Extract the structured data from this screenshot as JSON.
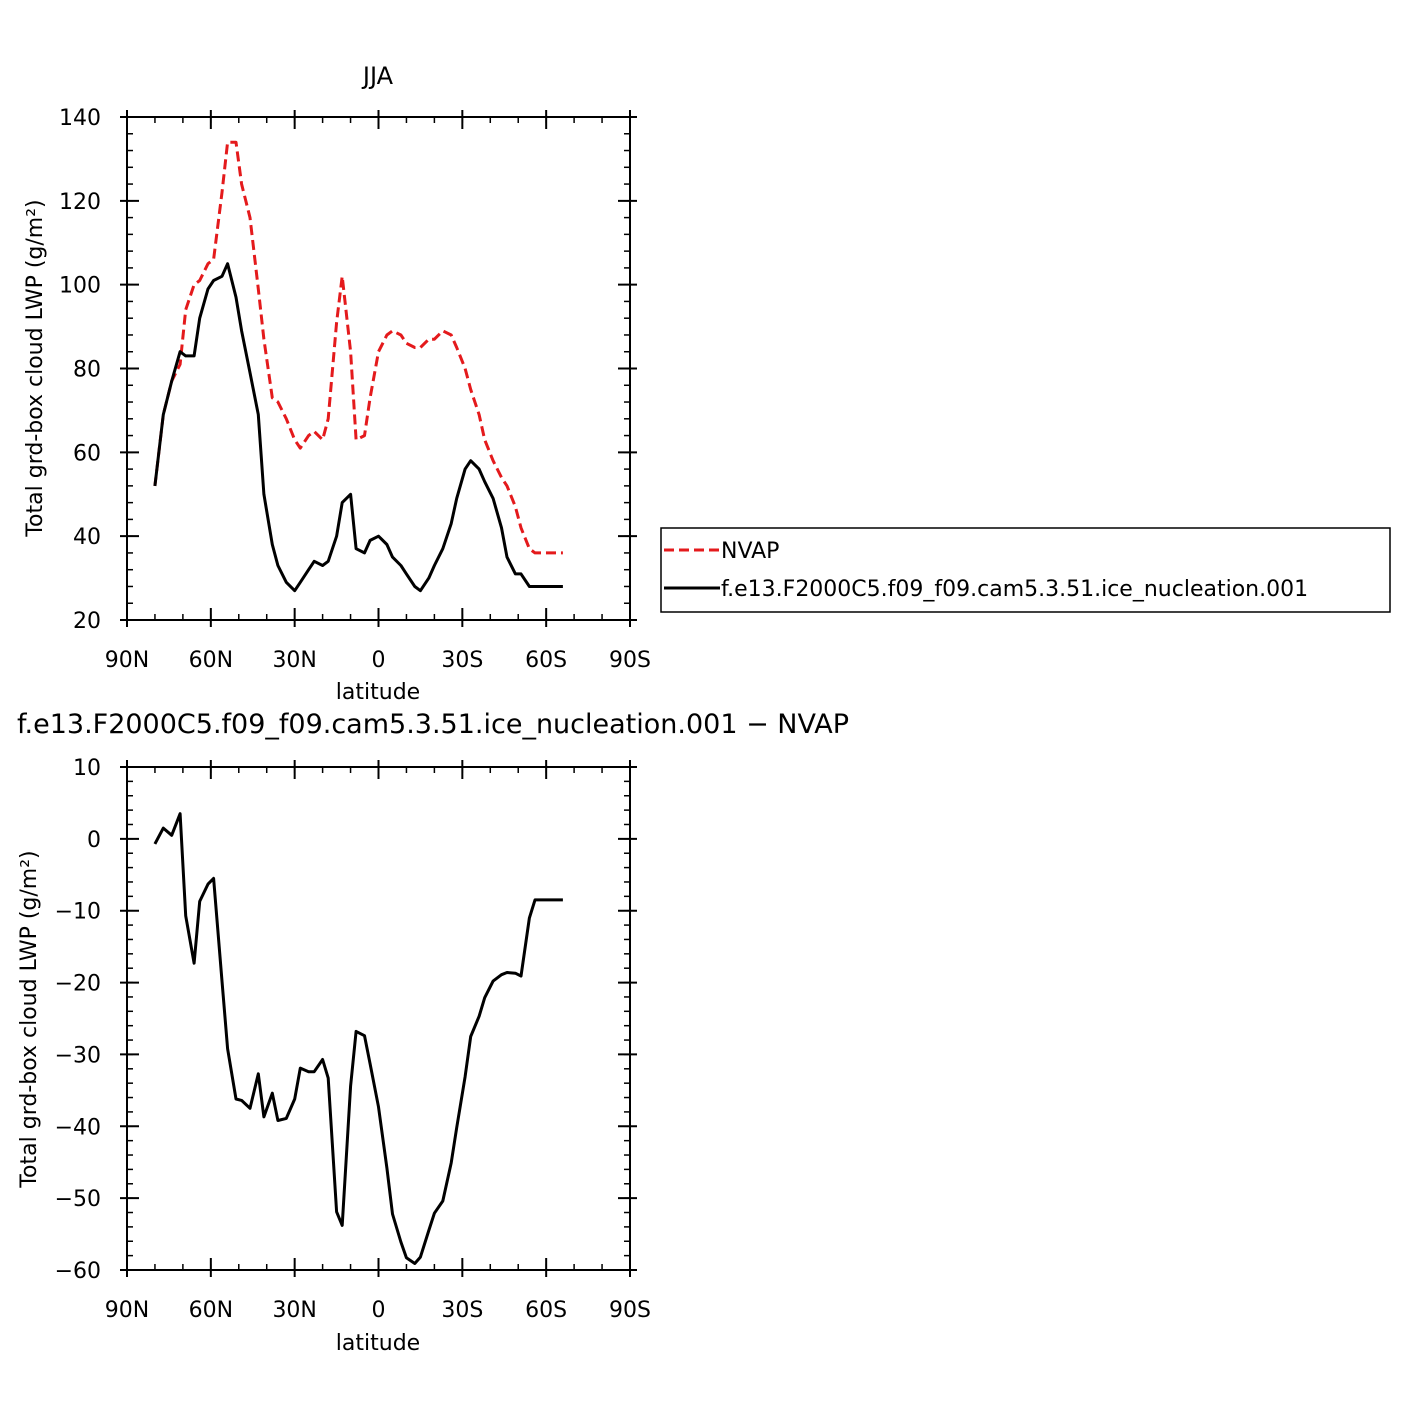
{
  "chart_data": [
    {
      "type": "line",
      "title": "JJA",
      "xlabel": "latitude",
      "ylabel": "Total grd-box cloud LWP (g/m²)",
      "xlim": [
        90,
        -90
      ],
      "ylim": [
        20,
        140
      ],
      "xticks": [
        90,
        60,
        30,
        0,
        -30,
        -60,
        -90
      ],
      "xtick_labels": [
        "90N",
        "60N",
        "30N",
        "0",
        "30S",
        "60S",
        "90S"
      ],
      "yticks": [
        20,
        40,
        60,
        80,
        100,
        120,
        140
      ],
      "ytick_labels": [
        "20",
        "40",
        "60",
        "80",
        "100",
        "120",
        "140"
      ],
      "legend_position": "right",
      "series": [
        {
          "name": "NVAP",
          "color": "#e41a1c",
          "dash": "dashed",
          "x": [
            80,
            77,
            74,
            71,
            69,
            66,
            64,
            61,
            59,
            56,
            54,
            51,
            49,
            46,
            43,
            41,
            38,
            36,
            33,
            30,
            28,
            25,
            23,
            20,
            18,
            15,
            13,
            10,
            8,
            5,
            3,
            0,
            -3,
            -5,
            -8,
            -10,
            -13,
            -15,
            -18,
            -20,
            -23,
            -26,
            -28,
            -31,
            -33,
            -36,
            -38,
            -41,
            -44,
            -46,
            -49,
            -51,
            -54,
            -56,
            -59,
            -61,
            -64,
            -66
          ],
          "y": [
            52,
            69,
            77,
            81,
            94,
            100,
            101,
            105,
            106,
            122,
            134,
            134,
            124,
            116,
            99,
            87,
            73,
            72,
            68,
            63,
            61,
            64,
            65,
            63,
            68,
            91,
            102,
            84,
            63,
            64,
            73,
            84,
            88,
            89,
            88,
            86,
            85,
            85,
            87,
            87,
            89,
            88,
            85,
            80,
            75,
            69,
            63,
            58,
            54,
            52,
            47,
            42,
            37,
            36,
            36,
            36,
            36,
            36
          ]
        },
        {
          "name": "f.e13.F2000C5.f09_f09.cam5.3.51.ice_nucleation.001",
          "color": "#000000",
          "dash": "solid",
          "x": [
            80,
            77,
            74,
            71,
            69,
            66,
            64,
            61,
            59,
            56,
            54,
            51,
            49,
            46,
            43,
            41,
            38,
            36,
            33,
            30,
            28,
            25,
            23,
            20,
            18,
            15,
            13,
            10,
            8,
            5,
            3,
            0,
            -3,
            -5,
            -8,
            -10,
            -13,
            -15,
            -18,
            -20,
            -23,
            -26,
            -28,
            -31,
            -33,
            -36,
            -38,
            -41,
            -44,
            -46,
            -49,
            -51,
            -54,
            -56,
            -59,
            -61,
            -64,
            -66
          ],
          "y": [
            52,
            69,
            77,
            84,
            83,
            83,
            92,
            99,
            101,
            102,
            105,
            97,
            89,
            79,
            69,
            50,
            38,
            33,
            29,
            27,
            29,
            32,
            34,
            33,
            34,
            40,
            48,
            50,
            37,
            36,
            39,
            40,
            38,
            35,
            33,
            31,
            28,
            27,
            30,
            33,
            37,
            43,
            49,
            56,
            58,
            56,
            53,
            49,
            42,
            35,
            31,
            31,
            28,
            28,
            28,
            28,
            28,
            28
          ]
        }
      ]
    },
    {
      "type": "line",
      "title": "f.e13.F2000C5.f09_f09.cam5.3.51.ice_nucleation.001 − NVAP",
      "xlabel": "latitude",
      "ylabel": "Total grd-box cloud LWP (g/m²)",
      "xlim": [
        90,
        -90
      ],
      "ylim": [
        -60,
        10
      ],
      "xticks": [
        90,
        60,
        30,
        0,
        -30,
        -60,
        -90
      ],
      "xtick_labels": [
        "90N",
        "60N",
        "30N",
        "0",
        "30S",
        "60S",
        "90S"
      ],
      "yticks": [
        -60,
        -50,
        -40,
        -30,
        -20,
        -10,
        0,
        10
      ],
      "ytick_labels": [
        "−60",
        "−50",
        "−40",
        "−30",
        "−20",
        "−10",
        "0",
        "10"
      ],
      "series": [
        {
          "color": "#000000",
          "dash": "solid",
          "x": [
            80,
            77,
            74,
            71,
            69,
            66,
            64,
            61,
            59,
            56,
            54,
            51,
            49,
            46,
            43,
            41,
            38,
            36,
            33,
            30,
            28,
            25,
            23,
            20,
            18,
            15,
            13,
            10,
            8,
            5,
            3,
            0,
            -3,
            -5,
            -8,
            -10,
            -13,
            -15,
            -18,
            -20,
            -23,
            -26,
            -28,
            -31,
            -33,
            -36,
            -38,
            -41,
            -44,
            -46,
            -49,
            -51,
            -54,
            -56,
            -59,
            -61,
            -64,
            -66
          ],
          "y": [
            -0.7,
            1.5,
            0.5,
            3.5,
            -10.7,
            -17.3,
            -8.7,
            -6.3,
            -5.5,
            -19.8,
            -29.2,
            -36.2,
            -36.4,
            -37.5,
            -32.7,
            -38.7,
            -35.4,
            -39.2,
            -38.9,
            -36.2,
            -31.9,
            -32.4,
            -32.4,
            -30.7,
            -33.3,
            -51.9,
            -53.8,
            -34.4,
            -26.8,
            -27.4,
            -31.3,
            -37.3,
            -45.8,
            -52.2,
            -56.1,
            -58.3,
            -59.1,
            -58.2,
            -54.5,
            -52.1,
            -50.4,
            -45.1,
            -40.2,
            -33.1,
            -27.5,
            -24.7,
            -22.1,
            -19.8,
            -18.9,
            -18.6,
            -18.7,
            -19.1,
            -11.0,
            -8.5,
            -8.5,
            -8.5,
            -8.5,
            -8.5
          ]
        }
      ]
    }
  ]
}
